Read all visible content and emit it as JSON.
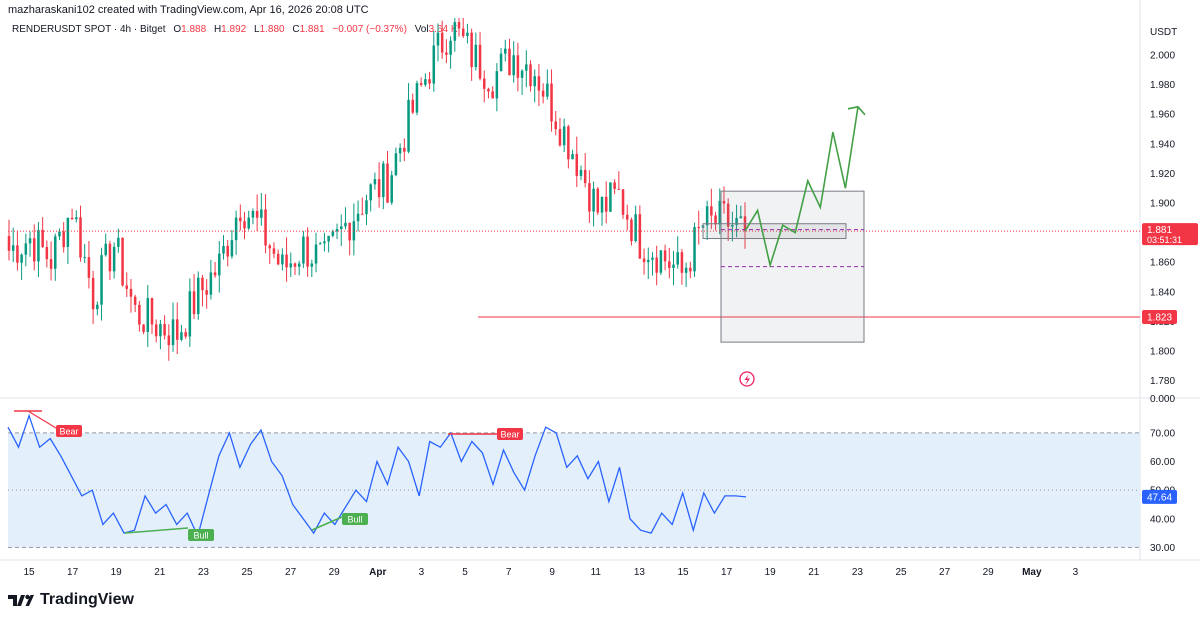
{
  "header": {
    "created_by": "mazharaskani102 created with TradingView.com, Apr 16, 2026 20:08 UTC"
  },
  "symbol_bar": {
    "name": "RENDERUSDT SPOT · 4h · Bitget",
    "open_label": "O",
    "open": "1.888",
    "high_label": "H",
    "high": "1.892",
    "low_label": "L",
    "low": "1.880",
    "close_label": "C",
    "close": "1.881",
    "change": "−0.007 (−0.37%)",
    "vol_label": "Vol",
    "vol": "3.64 K"
  },
  "price_axis": {
    "currency": "USDT",
    "ticks": [
      "2.000",
      "1.980",
      "1.960",
      "1.940",
      "1.920",
      "1.900",
      "1.880",
      "1.860",
      "1.840",
      "1.820",
      "1.800",
      "1.780"
    ],
    "last_price": "1.881",
    "countdown": "03:51:31",
    "level_label": "1.823",
    "upper_marker": "0.000"
  },
  "rsi_axis": {
    "ticks": [
      "70.00",
      "60.00",
      "50.00",
      "40.00",
      "30.00"
    ],
    "last_value": "47.64",
    "labels": [
      {
        "text": "Bear",
        "color": "#f23645"
      },
      {
        "text": "Bear",
        "color": "#f23645"
      },
      {
        "text": "Bull",
        "color": "#4caf50"
      },
      {
        "text": "Bull",
        "color": "#4caf50"
      }
    ]
  },
  "time_axis": {
    "ticks": [
      "15",
      "17",
      "19",
      "21",
      "23",
      "25",
      "27",
      "29",
      "Apr",
      "3",
      "5",
      "7",
      "9",
      "11",
      "13",
      "15",
      "17",
      "19",
      "21",
      "23",
      "25",
      "27",
      "29",
      "May",
      "3"
    ]
  },
  "colors": {
    "up": "#089981",
    "down": "#f23645",
    "rsi_line": "#2962ff",
    "rsi_band": "#e3f0fc",
    "projection": "#43a047",
    "level": "#f23645",
    "badge_blue": "#2962ff"
  },
  "chart_data": {
    "type": "candlestick",
    "interval": "4h",
    "ylim": [
      1.775,
      2.025
    ],
    "support_level": 1.823,
    "last_price": 1.881,
    "anchor_prices": [
      1.868,
      1.876,
      1.862,
      1.897,
      1.838,
      1.872,
      1.826,
      1.818,
      1.812,
      1.838,
      1.858,
      1.9,
      1.882,
      1.855,
      1.87,
      1.86,
      1.885,
      1.905,
      1.915,
      1.955,
      1.992,
      2.02,
      2.0,
      1.985,
      2.0,
      1.99,
      1.96,
      1.93,
      1.895,
      1.905,
      1.875,
      1.865,
      1.852,
      1.885,
      1.888,
      1.881
    ],
    "projection_prices": [
      1.881,
      1.895,
      1.858,
      1.885,
      1.88,
      1.915,
      1.897,
      1.948,
      1.91,
      1.965
    ],
    "projection_box_range": [
      1.806,
      1.908
    ],
    "dashed_levels": [
      1.882,
      1.857
    ],
    "rsi": {
      "ylim": [
        27,
        78
      ],
      "band": [
        30,
        70
      ],
      "last": 47.64,
      "values": [
        72,
        65,
        76,
        65,
        68,
        62,
        55,
        48,
        50,
        38,
        42,
        35,
        36,
        48,
        42,
        45,
        38,
        42,
        34,
        48,
        62,
        70,
        58,
        66,
        71,
        60,
        55,
        45,
        40,
        35,
        42,
        38,
        44,
        50,
        46,
        60,
        52,
        65,
        60,
        48,
        67,
        65,
        70,
        60,
        67,
        63,
        52,
        64,
        56,
        50,
        62,
        72,
        70,
        58,
        62,
        54,
        60,
        46,
        58,
        40,
        36,
        35,
        42,
        38,
        49,
        36,
        49,
        42,
        48,
        48,
        47.64
      ]
    }
  }
}
